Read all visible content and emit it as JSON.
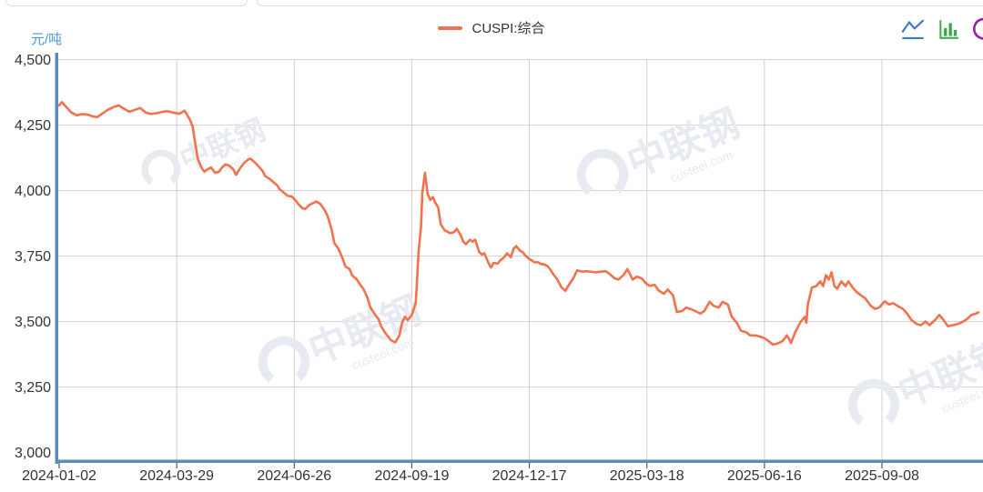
{
  "header": {
    "unit_label": "元/吨",
    "legend": {
      "label": "CUSPI:综合",
      "marker_color": "#f3714c"
    },
    "toolbox": {
      "line_icon_color": "#3d76c8",
      "bar_icon_color": "#35a845",
      "restore_icon_color": "#9b1fa8"
    }
  },
  "watermark": {
    "name": "中联钢",
    "domain": "custeel.com"
  },
  "chart_data": {
    "type": "line",
    "title": "",
    "ylabel": "元/吨",
    "xlabel": "",
    "grid": true,
    "legend_position": "top-center",
    "ylim": [
      2965,
      4500
    ],
    "y_ticks": [
      4500,
      4250,
      4000,
      3750,
      3500,
      3250,
      3000
    ],
    "y_tick_labels": [
      "4,500",
      "4,250",
      "4,000",
      "3,750",
      "3,500",
      "3,250",
      "3,000"
    ],
    "x_tick_labels": [
      "2024-01-02",
      "2024-03-29",
      "2024-06-26",
      "2024-09-19",
      "2024-12-17",
      "2025-03-18",
      "2025-06-16",
      "2025-09-08"
    ],
    "series": [
      {
        "name": "CUSPI:综合",
        "color": "#f3714c",
        "points": [
          [
            "2024-01-02",
            4325
          ],
          [
            "2024-01-04",
            4337
          ],
          [
            "2024-01-07",
            4320
          ],
          [
            "2024-01-11",
            4298
          ],
          [
            "2024-01-15",
            4287
          ],
          [
            "2024-01-19",
            4292
          ],
          [
            "2024-01-23",
            4290
          ],
          [
            "2024-01-27",
            4283
          ],
          [
            "2024-01-30",
            4280
          ],
          [
            "2024-02-03",
            4294
          ],
          [
            "2024-02-07",
            4308
          ],
          [
            "2024-02-11",
            4318
          ],
          [
            "2024-02-15",
            4325
          ],
          [
            "2024-02-19",
            4312
          ],
          [
            "2024-02-23",
            4301
          ],
          [
            "2024-02-27",
            4308
          ],
          [
            "2024-03-02",
            4315
          ],
          [
            "2024-03-06",
            4298
          ],
          [
            "2024-03-10",
            4292
          ],
          [
            "2024-03-14",
            4295
          ],
          [
            "2024-03-18",
            4300
          ],
          [
            "2024-03-22",
            4303
          ],
          [
            "2024-03-26",
            4298
          ],
          [
            "2024-03-31",
            4293
          ],
          [
            "2024-04-04",
            4305
          ],
          [
            "2024-04-08",
            4270
          ],
          [
            "2024-04-10",
            4245
          ],
          [
            "2024-04-12",
            4180
          ],
          [
            "2024-04-14",
            4120
          ],
          [
            "2024-04-17",
            4085
          ],
          [
            "2024-04-19",
            4072
          ],
          [
            "2024-04-21",
            4080
          ],
          [
            "2024-04-24",
            4088
          ],
          [
            "2024-04-27",
            4068
          ],
          [
            "2024-04-30",
            4072
          ],
          [
            "2024-05-02",
            4086
          ],
          [
            "2024-05-05",
            4100
          ],
          [
            "2024-05-08",
            4094
          ],
          [
            "2024-05-11",
            4080
          ],
          [
            "2024-05-13",
            4060
          ],
          [
            "2024-05-16",
            4085
          ],
          [
            "2024-05-19",
            4105
          ],
          [
            "2024-05-22",
            4118
          ],
          [
            "2024-05-24",
            4122
          ],
          [
            "2024-05-27",
            4108
          ],
          [
            "2024-05-30",
            4092
          ],
          [
            "2024-06-02",
            4075
          ],
          [
            "2024-06-04",
            4055
          ],
          [
            "2024-06-07",
            4046
          ],
          [
            "2024-06-10",
            4033
          ],
          [
            "2024-06-13",
            4020
          ],
          [
            "2024-06-15",
            4005
          ],
          [
            "2024-06-18",
            3992
          ],
          [
            "2024-06-21",
            3980
          ],
          [
            "2024-06-24",
            3977
          ],
          [
            "2024-06-27",
            3962
          ],
          [
            "2024-06-29",
            3948
          ],
          [
            "2024-07-02",
            3932
          ],
          [
            "2024-07-04",
            3930
          ],
          [
            "2024-07-07",
            3945
          ],
          [
            "2024-07-10",
            3953
          ],
          [
            "2024-07-12",
            3958
          ],
          [
            "2024-07-15",
            3948
          ],
          [
            "2024-07-18",
            3925
          ],
          [
            "2024-07-20",
            3905
          ],
          [
            "2024-07-23",
            3852
          ],
          [
            "2024-07-25",
            3800
          ],
          [
            "2024-07-28",
            3777
          ],
          [
            "2024-07-31",
            3740
          ],
          [
            "2024-08-02",
            3710
          ],
          [
            "2024-08-05",
            3700
          ],
          [
            "2024-08-07",
            3675
          ],
          [
            "2024-08-10",
            3662
          ],
          [
            "2024-08-13",
            3638
          ],
          [
            "2024-08-15",
            3625
          ],
          [
            "2024-08-18",
            3590
          ],
          [
            "2024-08-20",
            3555
          ],
          [
            "2024-08-23",
            3530
          ],
          [
            "2024-08-26",
            3508
          ],
          [
            "2024-08-28",
            3480
          ],
          [
            "2024-08-31",
            3455
          ],
          [
            "2024-09-04",
            3428
          ],
          [
            "2024-09-07",
            3420
          ],
          [
            "2024-09-10",
            3447
          ],
          [
            "2024-09-12",
            3495
          ],
          [
            "2024-09-14",
            3518
          ],
          [
            "2024-09-16",
            3505
          ],
          [
            "2024-09-19",
            3524
          ],
          [
            "2024-09-20",
            3540
          ],
          [
            "2024-09-22",
            3572
          ],
          [
            "2024-09-23",
            3654
          ],
          [
            "2024-09-24",
            3759
          ],
          [
            "2024-09-26",
            3865
          ],
          [
            "2024-09-27",
            3990
          ],
          [
            "2024-09-29",
            4068
          ],
          [
            "2024-10-01",
            3988
          ],
          [
            "2024-10-03",
            3964
          ],
          [
            "2024-10-05",
            3975
          ],
          [
            "2024-10-07",
            3952
          ],
          [
            "2024-10-09",
            3936
          ],
          [
            "2024-10-11",
            3870
          ],
          [
            "2024-10-14",
            3848
          ],
          [
            "2024-10-18",
            3837
          ],
          [
            "2024-10-21",
            3841
          ],
          [
            "2024-10-23",
            3854
          ],
          [
            "2024-10-26",
            3830
          ],
          [
            "2024-10-28",
            3805
          ],
          [
            "2024-10-30",
            3795
          ],
          [
            "2024-11-02",
            3812
          ],
          [
            "2024-11-04",
            3805
          ],
          [
            "2024-11-06",
            3812
          ],
          [
            "2024-11-09",
            3766
          ],
          [
            "2024-11-11",
            3756
          ],
          [
            "2024-11-13",
            3760
          ],
          [
            "2024-11-16",
            3724
          ],
          [
            "2024-11-18",
            3706
          ],
          [
            "2024-11-20",
            3724
          ],
          [
            "2024-11-23",
            3721
          ],
          [
            "2024-11-25",
            3733
          ],
          [
            "2024-11-28",
            3745
          ],
          [
            "2024-11-30",
            3760
          ],
          [
            "2024-12-03",
            3745
          ],
          [
            "2024-12-05",
            3777
          ],
          [
            "2024-12-07",
            3788
          ],
          [
            "2024-12-10",
            3770
          ],
          [
            "2024-12-12",
            3765
          ],
          [
            "2024-12-14",
            3752
          ],
          [
            "2024-12-17",
            3738
          ],
          [
            "2024-12-19",
            3733
          ],
          [
            "2024-12-21",
            3726
          ],
          [
            "2024-12-24",
            3726
          ],
          [
            "2024-12-26",
            3719
          ],
          [
            "2024-12-28",
            3719
          ],
          [
            "2024-12-31",
            3712
          ],
          [
            "2025-01-02",
            3700
          ],
          [
            "2025-01-04",
            3684
          ],
          [
            "2025-01-07",
            3665
          ],
          [
            "2025-01-09",
            3648
          ],
          [
            "2025-01-11",
            3630
          ],
          [
            "2025-01-14",
            3617
          ],
          [
            "2025-01-16",
            3635
          ],
          [
            "2025-01-20",
            3665
          ],
          [
            "2025-01-23",
            3695
          ],
          [
            "2025-01-27",
            3690
          ],
          [
            "2025-01-30",
            3692
          ],
          [
            "2025-02-03",
            3690
          ],
          [
            "2025-02-06",
            3688
          ],
          [
            "2025-02-10",
            3690
          ],
          [
            "2025-02-14",
            3692
          ],
          [
            "2025-02-17",
            3682
          ],
          [
            "2025-02-21",
            3665
          ],
          [
            "2025-02-24",
            3660
          ],
          [
            "2025-02-28",
            3678
          ],
          [
            "2025-03-03",
            3700
          ],
          [
            "2025-03-07",
            3660
          ],
          [
            "2025-03-10",
            3671
          ],
          [
            "2025-03-14",
            3665
          ],
          [
            "2025-03-17",
            3647
          ],
          [
            "2025-03-20",
            3636
          ],
          [
            "2025-03-24",
            3640
          ],
          [
            "2025-03-27",
            3618
          ],
          [
            "2025-03-31",
            3606
          ],
          [
            "2025-04-03",
            3622
          ],
          [
            "2025-04-07",
            3600
          ],
          [
            "2025-04-10",
            3536
          ],
          [
            "2025-04-14",
            3540
          ],
          [
            "2025-04-17",
            3553
          ],
          [
            "2025-04-21",
            3547
          ],
          [
            "2025-04-24",
            3540
          ],
          [
            "2025-04-28",
            3530
          ],
          [
            "2025-05-01",
            3540
          ],
          [
            "2025-05-05",
            3575
          ],
          [
            "2025-05-08",
            3560
          ],
          [
            "2025-05-12",
            3553
          ],
          [
            "2025-05-15",
            3575
          ],
          [
            "2025-05-19",
            3565
          ],
          [
            "2025-05-22",
            3518
          ],
          [
            "2025-05-26",
            3494
          ],
          [
            "2025-05-29",
            3465
          ],
          [
            "2025-06-02",
            3459
          ],
          [
            "2025-06-05",
            3447
          ],
          [
            "2025-06-09",
            3447
          ],
          [
            "2025-06-12",
            3443
          ],
          [
            "2025-06-16",
            3436
          ],
          [
            "2025-06-19",
            3425
          ],
          [
            "2025-06-22",
            3412
          ],
          [
            "2025-06-25",
            3415
          ],
          [
            "2025-06-29",
            3425
          ],
          [
            "2025-07-02",
            3447
          ],
          [
            "2025-07-04",
            3430
          ],
          [
            "2025-07-05",
            3418
          ],
          [
            "2025-07-08",
            3459
          ],
          [
            "2025-07-12",
            3500
          ],
          [
            "2025-07-15",
            3518
          ],
          [
            "2025-07-16",
            3495
          ],
          [
            "2025-07-17",
            3565
          ],
          [
            "2025-07-20",
            3630
          ],
          [
            "2025-07-23",
            3635
          ],
          [
            "2025-07-26",
            3653
          ],
          [
            "2025-07-28",
            3635
          ],
          [
            "2025-07-30",
            3677
          ],
          [
            "2025-08-01",
            3660
          ],
          [
            "2025-08-03",
            3688
          ],
          [
            "2025-08-05",
            3635
          ],
          [
            "2025-08-07",
            3625
          ],
          [
            "2025-08-10",
            3653
          ],
          [
            "2025-08-13",
            3635
          ],
          [
            "2025-08-15",
            3653
          ],
          [
            "2025-08-18",
            3630
          ],
          [
            "2025-08-21",
            3612
          ],
          [
            "2025-08-24",
            3600
          ],
          [
            "2025-08-27",
            3589
          ],
          [
            "2025-08-31",
            3560
          ],
          [
            "2025-09-03",
            3548
          ],
          [
            "2025-09-06",
            3553
          ],
          [
            "2025-09-10",
            3577
          ],
          [
            "2025-09-13",
            3565
          ],
          [
            "2025-09-16",
            3570
          ],
          [
            "2025-09-19",
            3560
          ],
          [
            "2025-09-23",
            3548
          ],
          [
            "2025-09-26",
            3530
          ],
          [
            "2025-09-29",
            3506
          ],
          [
            "2025-10-03",
            3490
          ],
          [
            "2025-10-06",
            3486
          ],
          [
            "2025-10-09",
            3500
          ],
          [
            "2025-10-12",
            3486
          ],
          [
            "2025-10-16",
            3506
          ],
          [
            "2025-10-19",
            3525
          ],
          [
            "2025-10-22",
            3506
          ],
          [
            "2025-10-25",
            3482
          ],
          [
            "2025-10-29",
            3486
          ],
          [
            "2025-11-01",
            3490
          ],
          [
            "2025-11-04",
            3497
          ],
          [
            "2025-11-07",
            3506
          ],
          [
            "2025-11-11",
            3525
          ],
          [
            "2025-11-14",
            3530
          ],
          [
            "2025-11-16",
            3535
          ]
        ]
      }
    ]
  }
}
